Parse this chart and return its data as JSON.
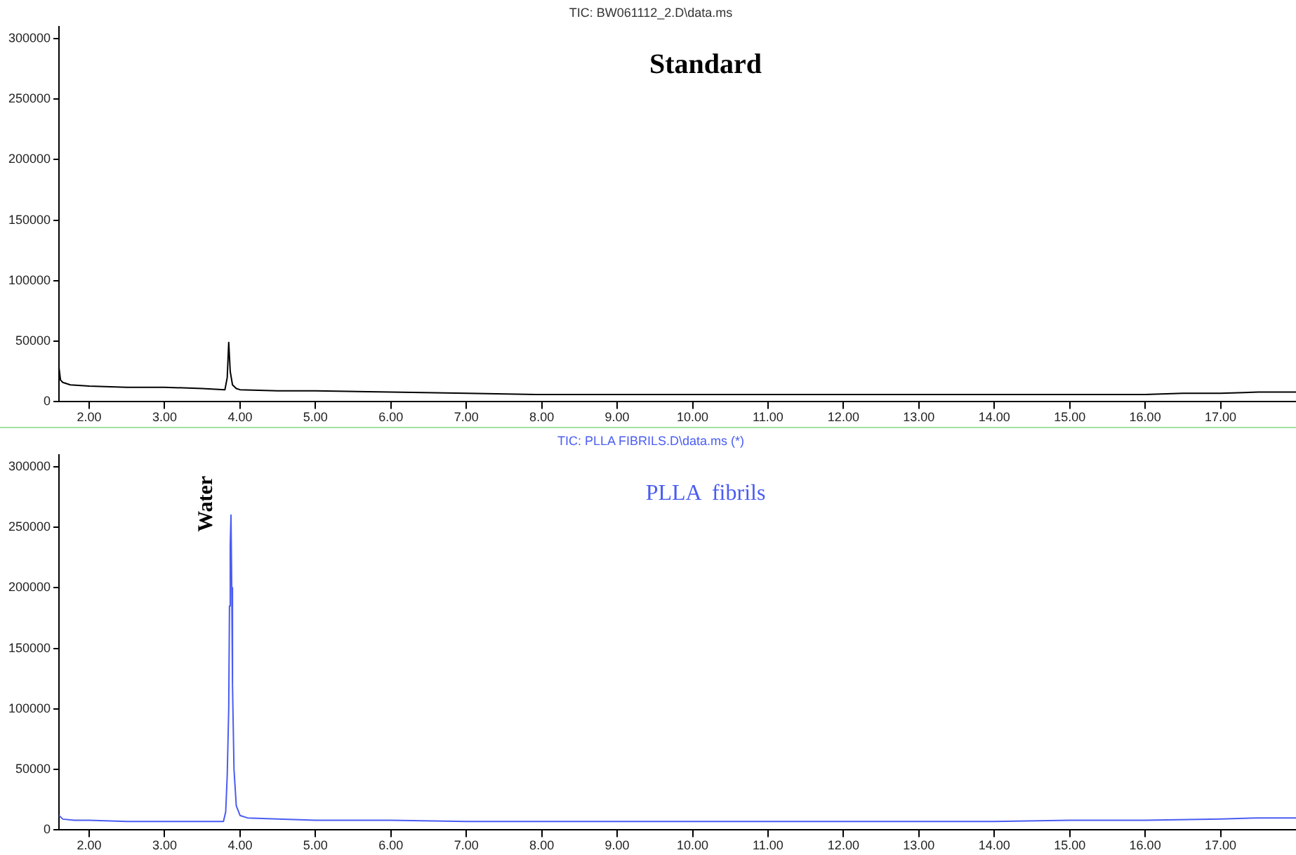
{
  "chart_data": [
    {
      "type": "line",
      "title": "TIC: BW061112_2.D\\data.ms",
      "annotations": [
        "Standard"
      ],
      "marker": "none",
      "grid": false,
      "legend": false,
      "xlim": [
        1.6,
        18.0
      ],
      "ylim": [
        0,
        310000
      ],
      "xticks": [
        {
          "value": 2,
          "label": "2.00"
        },
        {
          "value": 3,
          "label": "3.00"
        },
        {
          "value": 4,
          "label": "4.00"
        },
        {
          "value": 5,
          "label": "5.00"
        },
        {
          "value": 6,
          "label": "6.00"
        },
        {
          "value": 7,
          "label": "7.00"
        },
        {
          "value": 8,
          "label": "8.00"
        },
        {
          "value": 9,
          "label": "9.00"
        },
        {
          "value": 10,
          "label": "10.00"
        },
        {
          "value": 11,
          "label": "11.00"
        },
        {
          "value": 12,
          "label": "12.00"
        },
        {
          "value": 13,
          "label": "13.00"
        },
        {
          "value": 14,
          "label": "14.00"
        },
        {
          "value": 15,
          "label": "15.00"
        },
        {
          "value": 16,
          "label": "16.00"
        },
        {
          "value": 17,
          "label": "17.00"
        }
      ],
      "yticks": [
        0,
        50000,
        100000,
        150000,
        200000,
        250000,
        300000
      ],
      "series": [
        {
          "color": "#000000",
          "x": [
            1.6,
            1.62,
            1.65,
            1.75,
            2.0,
            2.5,
            3.0,
            3.5,
            3.8,
            3.83,
            3.85,
            3.87,
            3.9,
            3.95,
            4.0,
            4.5,
            5.0,
            6.0,
            7.0,
            8.0,
            9.0,
            10.0,
            11.0,
            12.0,
            13.0,
            14.0,
            15.0,
            16.0,
            16.5,
            17.0,
            17.5,
            18.0
          ],
          "values": [
            28000,
            18000,
            16000,
            14000,
            13000,
            12000,
            12000,
            11000,
            10000,
            20000,
            49000,
            25000,
            14000,
            11000,
            10000,
            9000,
            9000,
            8000,
            7000,
            6000,
            6000,
            6000,
            6000,
            6000,
            6000,
            6000,
            6000,
            6000,
            7000,
            7000,
            8000,
            8000
          ]
        }
      ]
    },
    {
      "type": "line",
      "title": "TIC: PLLA FIBRILS.D\\data.ms (*)",
      "annotations": [
        "PLLA  fibrils",
        {
          "text": "Water",
          "x": 3.88,
          "y": 260000
        }
      ],
      "marker": "none",
      "grid": false,
      "legend": false,
      "xlim": [
        1.6,
        18.0
      ],
      "ylim": [
        0,
        310000
      ],
      "xticks": [
        {
          "value": 2,
          "label": "2.00"
        },
        {
          "value": 3,
          "label": "3.00"
        },
        {
          "value": 4,
          "label": "4.00"
        },
        {
          "value": 5,
          "label": "5.00"
        },
        {
          "value": 6,
          "label": "6.00"
        },
        {
          "value": 7,
          "label": "7.00"
        },
        {
          "value": 8,
          "label": "8.00"
        },
        {
          "value": 9,
          "label": "9.00"
        },
        {
          "value": 10,
          "label": "10.00"
        },
        {
          "value": 11,
          "label": "11.00"
        },
        {
          "value": 12,
          "label": "12.00"
        },
        {
          "value": 13,
          "label": "13.00"
        },
        {
          "value": 14,
          "label": "14.00"
        },
        {
          "value": 15,
          "label": "15.00"
        },
        {
          "value": 16,
          "label": "16.00"
        },
        {
          "value": 17,
          "label": "17.00"
        }
      ],
      "yticks": [
        0,
        50000,
        100000,
        150000,
        200000,
        250000,
        300000
      ],
      "series": [
        {
          "color": "#4a5cf2",
          "x": [
            1.6,
            1.65,
            1.8,
            2.0,
            2.5,
            3.0,
            3.5,
            3.78,
            3.81,
            3.83,
            3.85,
            3.86,
            3.87,
            3.88,
            3.89,
            3.9,
            3.92,
            3.95,
            4.0,
            4.1,
            4.5,
            5.0,
            6.0,
            7.0,
            8.0,
            9.0,
            10.0,
            11.0,
            12.0,
            13.0,
            14.0,
            15.0,
            16.0,
            17.0,
            17.5,
            18.0
          ],
          "values": [
            12000,
            9000,
            8000,
            8000,
            7000,
            7000,
            7000,
            7000,
            15000,
            45000,
            100000,
            185000,
            235000,
            260000,
            200000,
            120000,
            50000,
            20000,
            12000,
            10000,
            9000,
            8000,
            8000,
            7000,
            7000,
            7000,
            7000,
            7000,
            7000,
            7000,
            7000,
            8000,
            8000,
            9000,
            10000,
            10000
          ]
        }
      ]
    }
  ]
}
